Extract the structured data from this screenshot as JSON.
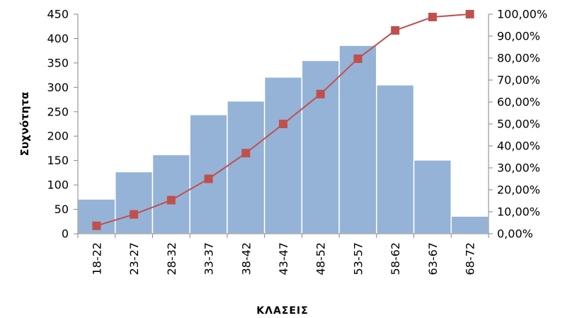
{
  "chart_data": {
    "type": "bar",
    "title": "",
    "xlabel": "ΚΛΑΣΕΙΣ",
    "ylabel": "Συχνότητα",
    "categories": [
      "18-22",
      "23-27",
      "28-32",
      "33-37",
      "38-42",
      "43-47",
      "48-52",
      "53-57",
      "58-62",
      "63-67",
      "68-72"
    ],
    "series": [
      {
        "type": "bar",
        "axis": "left",
        "color": "#95B3D7",
        "values": [
          71,
          127,
          162,
          244,
          272,
          321,
          355,
          386,
          305,
          151,
          36
        ]
      },
      {
        "type": "line",
        "axis": "right",
        "color": "#C0504D",
        "marker": "square",
        "values": [
          3.6,
          8.8,
          15.3,
          25.0,
          36.7,
          50.0,
          63.6,
          79.7,
          92.6,
          98.7,
          100.0
        ]
      }
    ],
    "ylim": [
      0,
      450
    ],
    "yticks": [
      0,
      50,
      100,
      150,
      200,
      250,
      300,
      350,
      400,
      450
    ],
    "y2lim": [
      0,
      100
    ],
    "y2ticks": [
      "0,00%",
      "10,00%",
      "20,00%",
      "30,00%",
      "40,00%",
      "50,00%",
      "60,00%",
      "70,00%",
      "80,00%",
      "90,00%",
      "100,00%"
    ],
    "grid": false,
    "legend": "none"
  }
}
